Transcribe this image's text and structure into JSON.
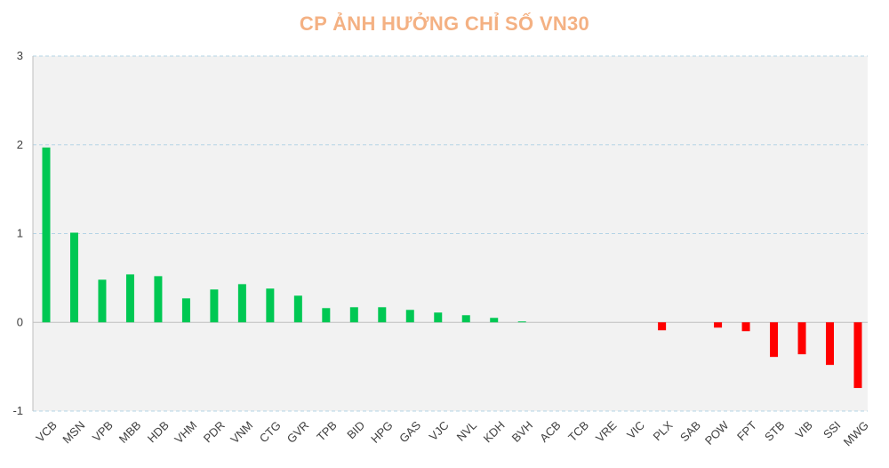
{
  "chart_data": {
    "type": "bar",
    "title": "CP ẢNH HƯỞNG CHỈ SỐ VN30",
    "xlabel": "",
    "ylabel": "",
    "ylim": [
      -1,
      3
    ],
    "yticks": [
      "3",
      "2",
      "1",
      "0",
      "-1"
    ],
    "ytick_values": [
      3,
      2,
      1,
      0,
      -1
    ],
    "grid": true,
    "legend": "none",
    "categories": [
      "VCB",
      "MSN",
      "VPB",
      "MBB",
      "HDB",
      "VHM",
      "PDR",
      "VNM",
      "CTG",
      "GVR",
      "TPB",
      "BID",
      "HPG",
      "GAS",
      "VJC",
      "NVL",
      "KDH",
      "BVH",
      "ACB",
      "TCB",
      "VRE",
      "VIC",
      "PLX",
      "SAB",
      "POW",
      "FPT",
      "STB",
      "VIB",
      "SSI",
      "MWG"
    ],
    "values": [
      1.97,
      1.01,
      0.48,
      0.54,
      0.52,
      0.27,
      0.37,
      0.43,
      0.38,
      0.3,
      0.16,
      0.17,
      0.17,
      0.14,
      0.11,
      0.08,
      0.05,
      0.01,
      0,
      0,
      0,
      0,
      -0.09,
      0,
      -0.06,
      -0.1,
      -0.39,
      -0.36,
      -0.48,
      -0.74
    ],
    "colors": {
      "positive": "#00c853",
      "negative": "#ff0000",
      "title": "#f4b183",
      "plot_background": "#f2f2f2",
      "grid": "#b4d4e6",
      "axis": "#bfbfbf",
      "text": "#404040"
    }
  }
}
